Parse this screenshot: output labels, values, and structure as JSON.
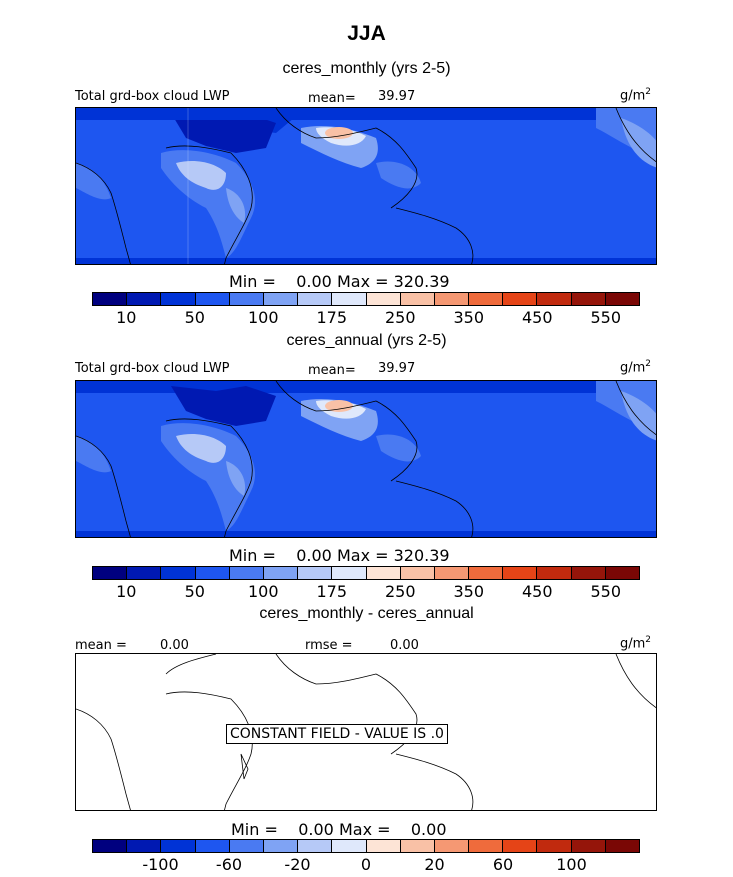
{
  "figure_title": "JJA",
  "panels": [
    {
      "title": "ceres_monthly (yrs 2-5)",
      "left_label": "Total grd-box cloud LWP",
      "mean_label": "mean=",
      "mean_value": "39.97",
      "units_base": "g/m",
      "units_exp": "2",
      "min_label": "Min =",
      "min_value": "0.00",
      "max_label": "Max =",
      "max_value": "320.39",
      "colorbar_ticks": [
        "10",
        "50",
        "100",
        "175",
        "250",
        "350",
        "450",
        "550"
      ]
    },
    {
      "title": "ceres_annual (yrs 2-5)",
      "left_label": "Total grd-box cloud LWP",
      "mean_label": "mean=",
      "mean_value": "39.97",
      "units_base": "g/m",
      "units_exp": "2",
      "min_label": "Min =",
      "min_value": "0.00",
      "max_label": "Max =",
      "max_value": "320.39",
      "colorbar_ticks": [
        "10",
        "50",
        "100",
        "175",
        "250",
        "350",
        "450",
        "550"
      ]
    },
    {
      "title": "ceres_monthly - ceres_annual",
      "mean_label": "mean =",
      "mean_value": "0.00",
      "rmse_label": "rmse =",
      "rmse_value": "0.00",
      "units_base": "g/m",
      "units_exp": "2",
      "constant_text": "CONSTANT FIELD - VALUE IS .0",
      "min_label": "Min =",
      "min_value": "0.00",
      "max_label": "Max =",
      "max_value": "0.00",
      "colorbar_ticks": [
        "-100",
        "-60",
        "-20",
        "0",
        "20",
        "60",
        "100"
      ]
    }
  ],
  "colorbar_colors": [
    "#00007f",
    "#0019b2",
    "#0033d6",
    "#1e56f0",
    "#4a7af2",
    "#7fa3f4",
    "#b6c9f7",
    "#dfe8fb",
    "#fde4d6",
    "#f9c1a6",
    "#f59873",
    "#ef6b3c",
    "#e54417",
    "#c12a0e",
    "#95150a",
    "#7a0705"
  ]
}
